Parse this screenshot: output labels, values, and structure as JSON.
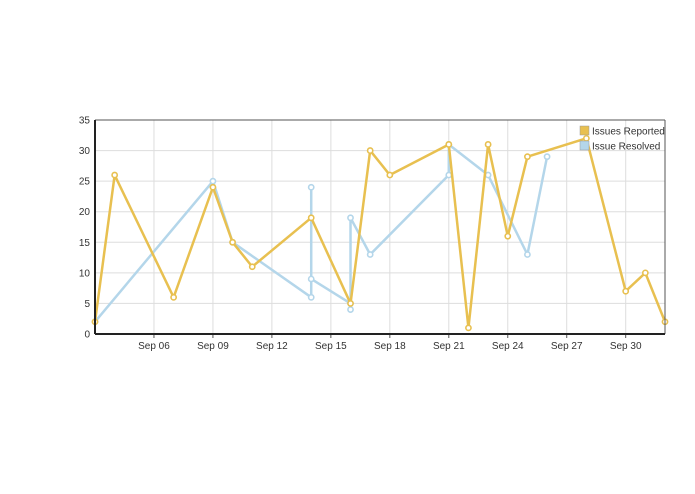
{
  "chart_data": {
    "type": "line",
    "x_axis": {
      "type": "date",
      "min": "2017-09-03",
      "max": "2017-10-02",
      "tick_values": [
        "2017-09-06",
        "2017-09-09",
        "2017-09-12",
        "2017-09-15",
        "2017-09-18",
        "2017-09-21",
        "2017-09-24",
        "2017-09-27",
        "2017-09-30"
      ],
      "tick_labels": [
        "Sep 06",
        "Sep 09",
        "Sep 12",
        "Sep 15",
        "Sep 18",
        "Sep 21",
        "Sep 24",
        "Sep 27",
        "Sep 30"
      ]
    },
    "y_axis": {
      "min": 0,
      "max": 35,
      "ticks": [
        0,
        5,
        10,
        15,
        20,
        25,
        30,
        35
      ],
      "tick_labels": [
        "0",
        "5",
        "10",
        "15",
        "20",
        "25",
        "30",
        "35"
      ]
    },
    "grid": true,
    "legend": "top-right",
    "series": [
      {
        "name": "Issues Reported",
        "color": "#e8c050",
        "points": [
          [
            "2017-09-03",
            2
          ],
          [
            "2017-09-04",
            26
          ],
          [
            "2017-09-07",
            6
          ],
          [
            "2017-09-09",
            24
          ],
          [
            "2017-09-10",
            15
          ],
          [
            "2017-09-11",
            11
          ],
          [
            "2017-09-14",
            19
          ],
          [
            "2017-09-16",
            5
          ],
          [
            "2017-09-17",
            30
          ],
          [
            "2017-09-18",
            26
          ],
          [
            "2017-09-21",
            31
          ],
          [
            "2017-09-22",
            1
          ],
          [
            "2017-09-23",
            31
          ],
          [
            "2017-09-24",
            16
          ],
          [
            "2017-09-25",
            29
          ],
          [
            "2017-09-28",
            32
          ],
          [
            "2017-09-30",
            7
          ],
          [
            "2017-10-01",
            10
          ],
          [
            "2017-10-02",
            2
          ]
        ]
      },
      {
        "name": "Issue Resolved",
        "color": "#b4d6ea",
        "points": [
          [
            "2017-09-03",
            2
          ],
          [
            "2017-09-09",
            25
          ],
          [
            "2017-09-10",
            15
          ],
          [
            "2017-09-14",
            6
          ],
          [
            "2017-09-14",
            24
          ],
          [
            "2017-09-14",
            9
          ],
          [
            "2017-09-16",
            5
          ],
          [
            "2017-09-16",
            4
          ],
          [
            "2017-09-16",
            19
          ],
          [
            "2017-09-17",
            13
          ],
          [
            "2017-09-21",
            26
          ],
          [
            "2017-09-21",
            31
          ],
          [
            "2017-09-23",
            26
          ],
          [
            "2017-09-25",
            13
          ],
          [
            "2017-09-26",
            29
          ]
        ]
      }
    ]
  }
}
